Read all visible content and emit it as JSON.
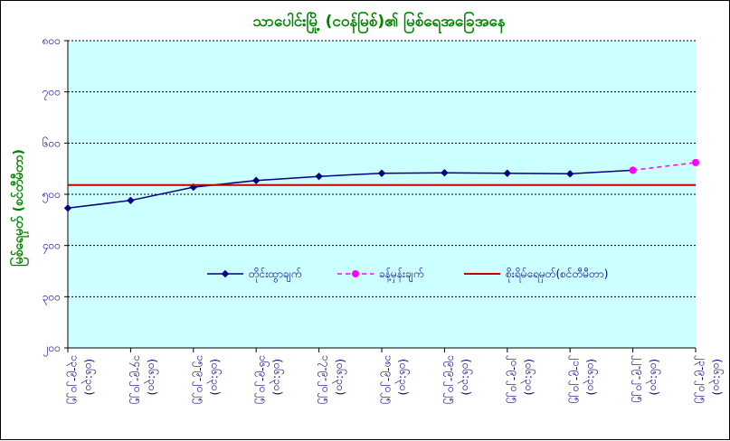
{
  "colors": {
    "plot_background": "#ccffff",
    "title": "#008000",
    "ylabel": "#008000",
    "tick_text": "#000080",
    "observed_series": "#000080",
    "forecast_series": "#ff00ff",
    "reference_line": "#c00000",
    "gridline": "#000000"
  },
  "chart_data": {
    "type": "line",
    "title": "သာပေါင်းမြို့ (ငဝန်မြစ်)၏ မြစ်ရေအခြေအနေ",
    "xlabel": "",
    "ylabel": "မြစ်ရေမှတ် (စင်တီမီတာ)",
    "categories": [
      {
        "date": "၁၃-၉-၂၀၂၅",
        "time": "(၀၆:၃၀)"
      },
      {
        "date": "၁၄-၉-၂၀၂၅",
        "time": "(၀၆:၃၀)"
      },
      {
        "date": "၁၅-၉-၂၀၂၅",
        "time": "(၀၆:၃၀)"
      },
      {
        "date": "၁၆-၉-၂၀၂၅",
        "time": "(၀၆:၃၀)"
      },
      {
        "date": "၁၇-၉-၂၀၂၅",
        "time": "(၀၆:၃၀)"
      },
      {
        "date": "၁၈-၉-၂၀၂၅",
        "time": "(၀၆:၃၀)"
      },
      {
        "date": "၁၉-၉-၂၀၂၅",
        "time": "(၀၆:၃၀)"
      },
      {
        "date": "၂၀-၉-၂၀၂၅",
        "time": "(၀၆:၃၀)"
      },
      {
        "date": "၂၁-၉-၂၀၂၅",
        "time": "(၀၆:၃၀)"
      },
      {
        "date": "၂၂-၉-၂၀၂၅",
        "time": "(၀၆:၃၀)"
      },
      {
        "date": "၂၃-၉-၂၀၂၅",
        "time": "(၀၆:၃၀)"
      }
    ],
    "yticks": [
      {
        "value": 200,
        "label": "၂၀၀"
      },
      {
        "value": 300,
        "label": "၃၀၀"
      },
      {
        "value": 400,
        "label": "၄၀၀"
      },
      {
        "value": 500,
        "label": "၅၀၀"
      },
      {
        "value": 600,
        "label": "၆၀၀"
      },
      {
        "value": 700,
        "label": "၇၀၀"
      },
      {
        "value": 800,
        "label": "၈၀၀"
      }
    ],
    "ylim": [
      200,
      800
    ],
    "grid": true,
    "legend_position": "middle",
    "series": [
      {
        "name": "တိုင်းထွာချက်",
        "style": "solid",
        "marker": "diamond",
        "values": [
          473,
          488,
          514,
          527,
          535,
          541,
          542,
          541,
          540,
          547,
          null
        ]
      },
      {
        "name": "ခန့်မှန်းချက်",
        "style": "dashed",
        "marker": "circle",
        "values": [
          null,
          null,
          null,
          null,
          null,
          null,
          null,
          null,
          null,
          547,
          562
        ]
      },
      {
        "name": "စိုးရိမ်ရေမှတ်(စင်တီမီတာ)",
        "style": "solid",
        "marker": "none",
        "values": [
          518,
          518,
          518,
          518,
          518,
          518,
          518,
          518,
          518,
          518,
          518
        ]
      }
    ]
  }
}
